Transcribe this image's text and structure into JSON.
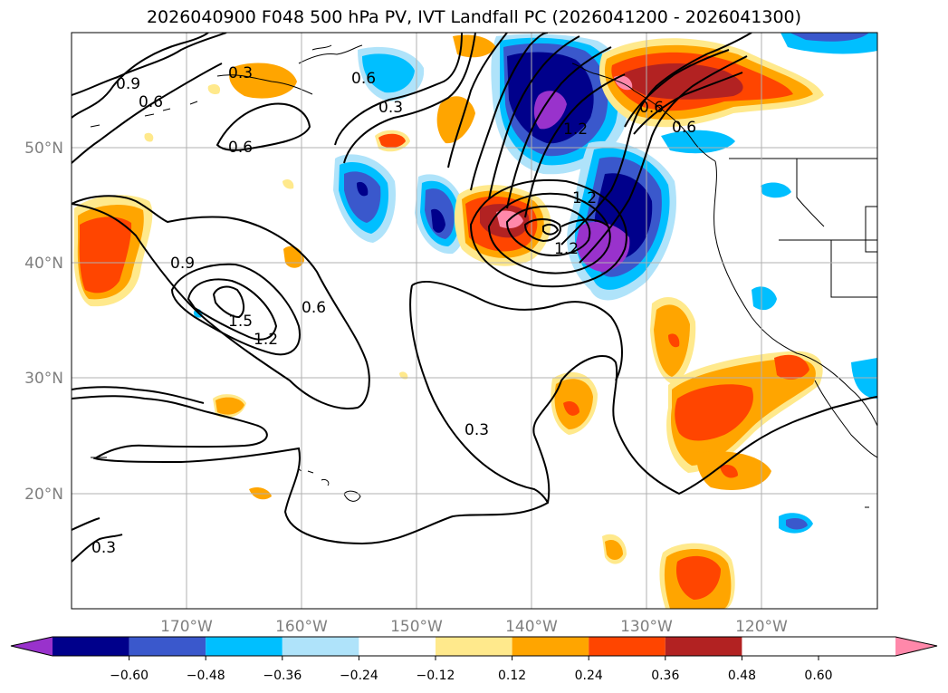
{
  "title": "2026040900 F048 500 hPa PV, IVT Landfall PC (2026041200 - 2026041300)",
  "map": {
    "lon_labels": [
      "170°W",
      "160°W",
      "150°W",
      "140°W",
      "130°W",
      "120°W"
    ],
    "lat_labels": [
      "50°N",
      "40°N",
      "30°N",
      "20°N"
    ],
    "contour_labels": [
      "0.9",
      "0.6",
      "0.3",
      "0.6",
      "0.3",
      "0.6",
      "0.9",
      "1.5",
      "1.2",
      "0.6",
      "1.2",
      "0.3",
      "0.3",
      "1.2",
      "0.6",
      "1.2",
      "0.6"
    ]
  },
  "colorbar": {
    "ticks": [
      "−0.60",
      "−0.48",
      "−0.36",
      "−0.24",
      "−0.12",
      "0.12",
      "0.24",
      "0.36",
      "0.48",
      "0.60"
    ],
    "colors": [
      "#9932cc",
      "#00008b",
      "#3a58cc",
      "#00bfff",
      "#afe3fa",
      "#ffffff",
      "#ffe98c",
      "#ffa500",
      "#ff4500",
      "#b22222",
      "#ff88aa"
    ]
  }
}
